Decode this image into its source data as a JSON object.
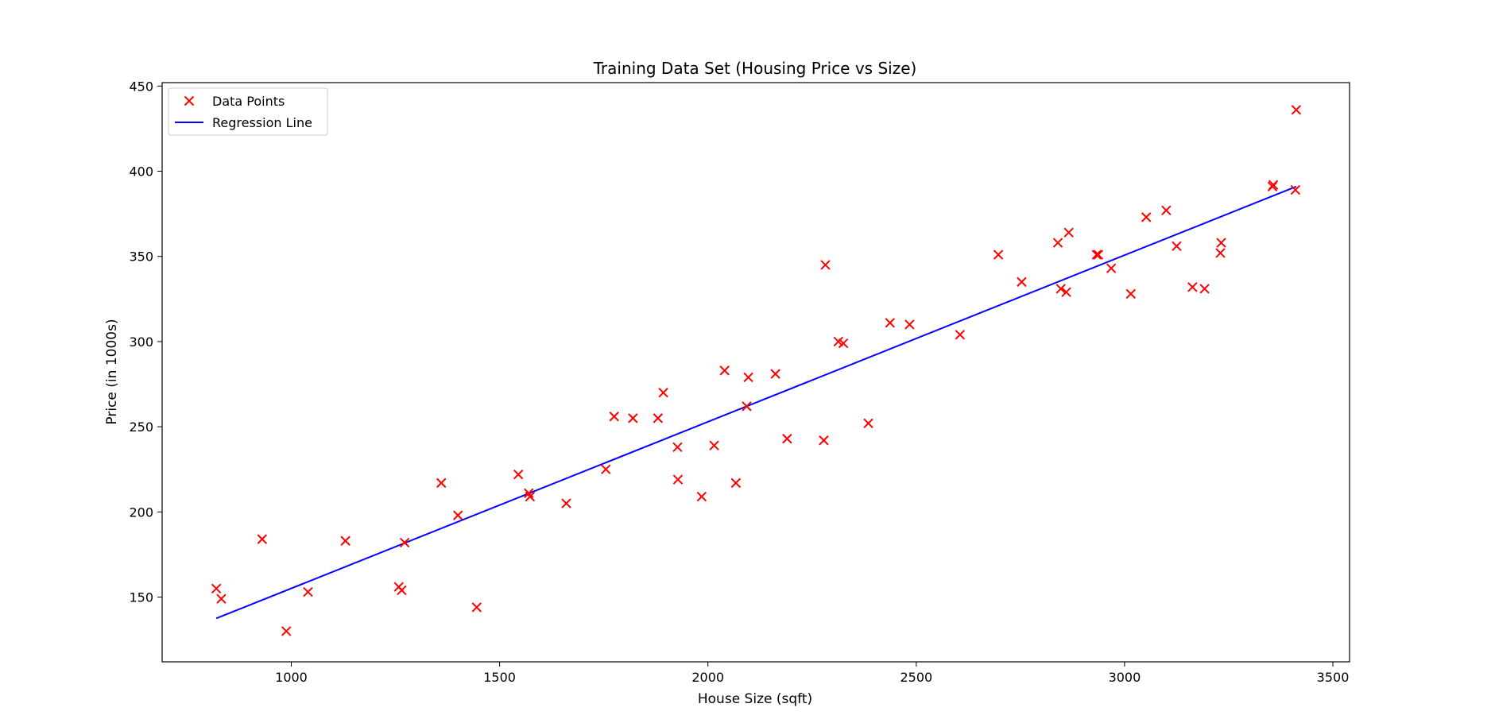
{
  "chart_data": {
    "type": "scatter",
    "title": "Training Data Set (Housing Price vs Size)",
    "xlabel": "House Size (sqft)",
    "ylabel": "Price (in 1000s)",
    "xlim": [
      690,
      3540
    ],
    "ylim": [
      112,
      452
    ],
    "xticks": [
      1000,
      1500,
      2000,
      2500,
      3000,
      3500
    ],
    "yticks": [
      150,
      200,
      250,
      300,
      350,
      400,
      450
    ],
    "grid": false,
    "legend_position": "top-left",
    "colors": {
      "points": "#ff0000",
      "line": "#0000ff"
    },
    "series": [
      {
        "name": "Data Points",
        "kind": "scatter",
        "x": [
          820,
          832,
          930,
          988,
          1040,
          1130,
          1258,
          1265,
          1272,
          1360,
          1400,
          1445,
          1545,
          1570,
          1573,
          1660,
          1755,
          1775,
          1820,
          1880,
          1893,
          1927,
          1928,
          1985,
          2015,
          2040,
          2067,
          2093,
          2097,
          2162,
          2190,
          2278,
          2282,
          2313,
          2325,
          2385,
          2437,
          2484,
          2605,
          2697,
          2753,
          2840,
          2847,
          2860,
          2866,
          2933,
          2937,
          2968,
          3015,
          3052,
          3100,
          3125,
          3163,
          3192,
          3230,
          3232,
          3355,
          3357,
          3410,
          3412
        ],
        "y": [
          155,
          149,
          184,
          130,
          153,
          183,
          156,
          154,
          182,
          217,
          198,
          144,
          222,
          211,
          209,
          205,
          225,
          256,
          255,
          255,
          270,
          238,
          219,
          209,
          239,
          283,
          217,
          262,
          279,
          281,
          243,
          242,
          345,
          300,
          299,
          252,
          311,
          310,
          304,
          351,
          335,
          358,
          331,
          329,
          364,
          351,
          351,
          343,
          328,
          373,
          377,
          356,
          332,
          331,
          352,
          358,
          391,
          392,
          389,
          436
        ]
      },
      {
        "name": "Regression Line",
        "kind": "line",
        "x": [
          820,
          3412
        ],
        "y": [
          137.5,
          391
        ]
      }
    ]
  }
}
